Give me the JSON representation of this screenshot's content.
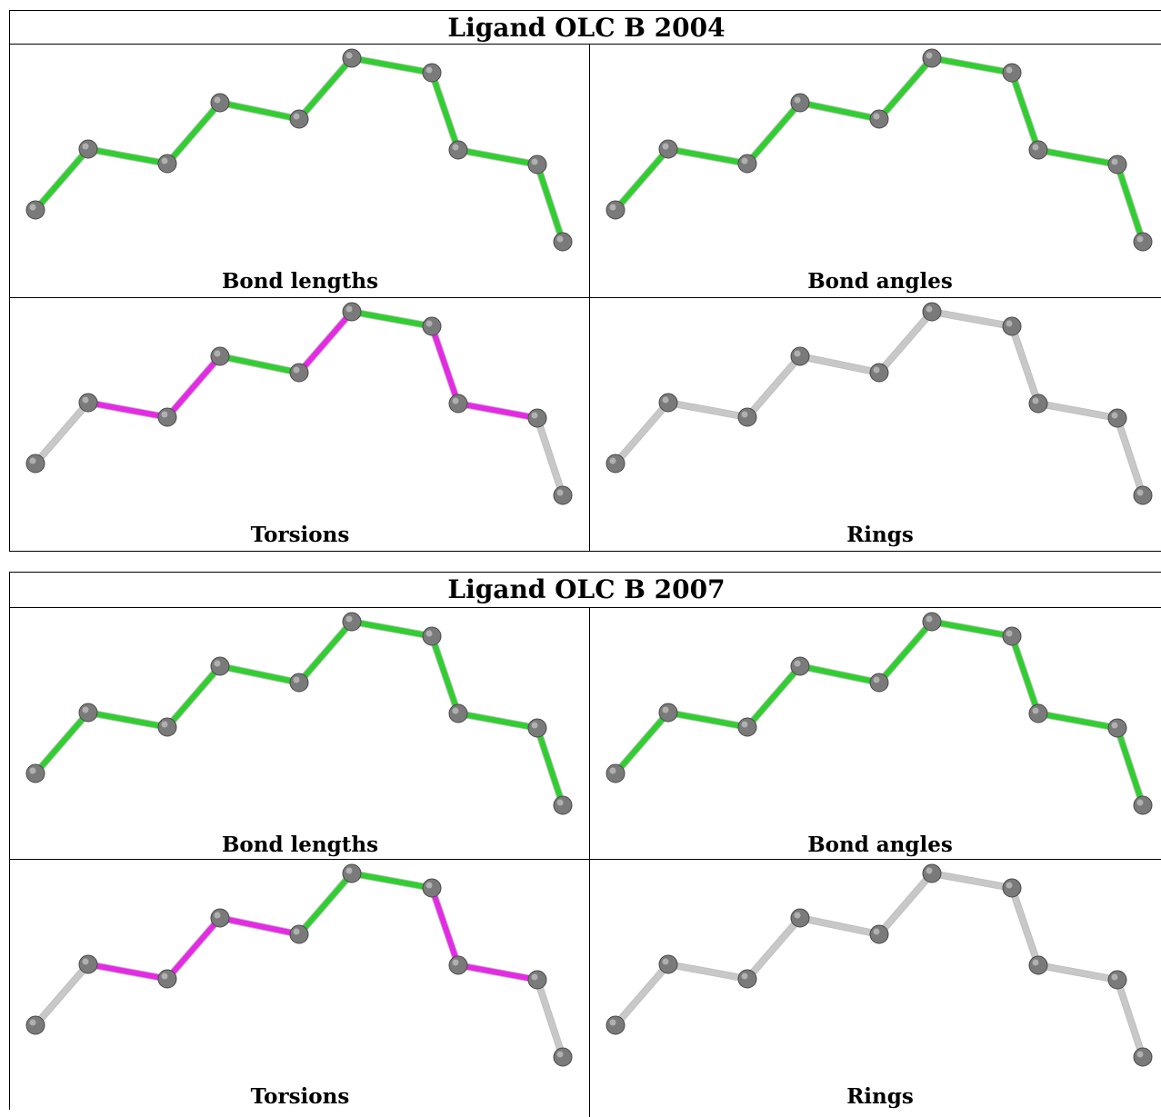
{
  "blocks": [
    {
      "title": "Ligand OLC B 2004",
      "panels": [
        {
          "caption": "Bond lengths",
          "bond_colors": [
            "green",
            "green",
            "green",
            "green",
            "green",
            "green",
            "green",
            "green",
            "green"
          ]
        },
        {
          "caption": "Bond angles",
          "bond_colors": [
            "green",
            "green",
            "green",
            "green",
            "green",
            "green",
            "green",
            "green",
            "green"
          ]
        },
        {
          "caption": "Torsions",
          "bond_colors": [
            "grey",
            "magenta",
            "magenta",
            "green",
            "magenta",
            "green",
            "magenta",
            "magenta",
            "grey"
          ]
        },
        {
          "caption": "Rings",
          "bond_colors": [
            "grey",
            "grey",
            "grey",
            "grey",
            "grey",
            "grey",
            "grey",
            "grey",
            "grey"
          ]
        }
      ]
    },
    {
      "title": "Ligand OLC B 2007",
      "panels": [
        {
          "caption": "Bond lengths",
          "bond_colors": [
            "green",
            "green",
            "green",
            "green",
            "green",
            "green",
            "green",
            "green",
            "green"
          ]
        },
        {
          "caption": "Bond angles",
          "bond_colors": [
            "green",
            "green",
            "green",
            "green",
            "green",
            "green",
            "green",
            "green",
            "green"
          ]
        },
        {
          "caption": "Torsions",
          "bond_colors": [
            "grey",
            "magenta",
            "magenta",
            "magenta",
            "green",
            "green",
            "magenta",
            "magenta",
            "grey"
          ]
        },
        {
          "caption": "Rings",
          "bond_colors": [
            "grey",
            "grey",
            "grey",
            "grey",
            "grey",
            "grey",
            "grey",
            "grey",
            "grey"
          ]
        }
      ]
    }
  ],
  "colors": {
    "green": "#2fcf2f",
    "magenta": "#e629e6",
    "grey": "#c8c8c8",
    "atom": "#7a7a7a"
  }
}
